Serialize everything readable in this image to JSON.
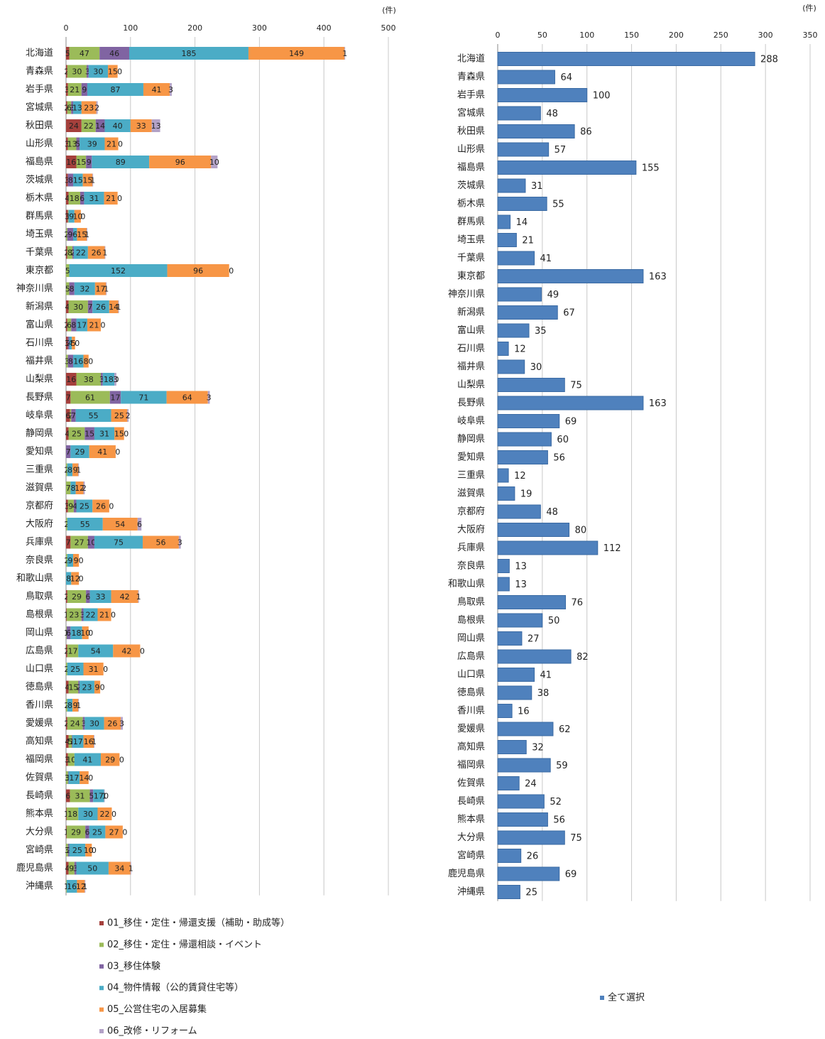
{
  "chart_data": [
    {
      "type": "stacked_barh",
      "unit_label": "(件)",
      "categories": [
        "北海道",
        "青森県",
        "岩手県",
        "宮城県",
        "秋田県",
        "山形県",
        "福島県",
        "茨城県",
        "栃木県",
        "群馬県",
        "埼玉県",
        "千葉県",
        "東京都",
        "神奈川県",
        "新潟県",
        "富山県",
        "石川県",
        "福井県",
        "山梨県",
        "長野県",
        "岐阜県",
        "静岡県",
        "愛知県",
        "三重県",
        "滋賀県",
        "京都府",
        "大阪府",
        "兵庫県",
        "奈良県",
        "和歌山県",
        "鳥取県",
        "島根県",
        "岡山県",
        "広島県",
        "山口県",
        "徳島県",
        "香川県",
        "愛媛県",
        "高知県",
        "福岡県",
        "佐賀県",
        "長崎県",
        "熊本県",
        "大分県",
        "宮崎県",
        "鹿児島県",
        "沖縄県"
      ],
      "xlim": [
        0,
        500
      ],
      "xticks": [
        0,
        100,
        200,
        300,
        400,
        500
      ],
      "grid": true,
      "legend": "bottom",
      "series": [
        {
          "name": "01_移住・定住・帰還支援（補助・助成等）",
          "color": "#a5403c",
          "values": [
            5,
            2,
            3,
            2,
            24,
            3,
            16,
            3,
            4,
            3,
            0,
            2,
            0,
            0,
            4,
            2,
            3,
            0,
            16,
            7,
            6,
            4,
            0,
            0,
            0,
            3,
            0,
            7,
            0,
            0,
            2,
            1,
            0,
            2,
            0,
            4,
            0,
            2,
            4,
            3,
            0,
            6,
            1,
            1,
            0,
            4,
            0
          ]
        },
        {
          "name": "02_移住・定住・帰還相談・イベント",
          "color": "#9bbb59",
          "values": [
            47,
            30,
            21,
            6,
            22,
            13,
            15,
            0,
            18,
            1,
            2,
            8,
            5,
            5,
            30,
            6,
            0,
            3,
            38,
            61,
            2,
            25,
            0,
            2,
            7,
            9,
            2,
            27,
            2,
            0,
            29,
            23,
            1,
            17,
            2,
            15,
            2,
            24,
            5,
            10,
            3,
            31,
            18,
            29,
            3,
            9,
            1
          ]
        },
        {
          "name": "03_移住体験",
          "color": "#8064a2",
          "values": [
            46,
            3,
            9,
            3,
            14,
            5,
            9,
            8,
            6,
            0,
            9,
            2,
            0,
            8,
            7,
            8,
            2,
            8,
            3,
            17,
            7,
            15,
            7,
            0,
            0,
            4,
            0,
            10,
            0,
            0,
            6,
            3,
            6,
            0,
            0,
            2,
            0,
            3,
            1,
            0,
            1,
            5,
            0,
            6,
            2,
            3,
            0
          ]
        },
        {
          "name": "04_物件情報（公的賃貸住宅等）",
          "color": "#4bacc6",
          "values": [
            185,
            30,
            87,
            13,
            40,
            39,
            89,
            15,
            31,
            9,
            6,
            22,
            152,
            32,
            26,
            17,
            4,
            16,
            18,
            71,
            55,
            31,
            29,
            8,
            8,
            25,
            55,
            75,
            9,
            8,
            33,
            22,
            18,
            54,
            25,
            23,
            8,
            30,
            17,
            41,
            17,
            17,
            30,
            25,
            25,
            50,
            16
          ]
        },
        {
          "name": "05_公営住宅の入居募集",
          "color": "#f79646",
          "values": [
            149,
            15,
            41,
            23,
            33,
            21,
            96,
            15,
            21,
            10,
            15,
            26,
            96,
            17,
            14,
            21,
            5,
            8,
            0,
            64,
            25,
            15,
            41,
            9,
            12,
            26,
            54,
            56,
            9,
            12,
            42,
            21,
            10,
            42,
            31,
            9,
            9,
            26,
            16,
            29,
            14,
            0,
            22,
            27,
            10,
            34,
            12
          ]
        },
        {
          "name": "06_改修・リフォーム",
          "color": "#b3a2c7",
          "values": [
            1,
            0,
            3,
            2,
            13,
            0,
            10,
            1,
            0,
            0,
            1,
            1,
            0,
            1,
            1,
            0,
            0,
            0,
            3,
            3,
            2,
            0,
            0,
            1,
            2,
            0,
            6,
            3,
            0,
            0,
            1,
            0,
            0,
            0,
            0,
            0,
            1,
            3,
            1,
            0,
            0,
            1,
            0,
            0,
            0,
            1,
            1
          ]
        }
      ]
    },
    {
      "type": "barh",
      "unit_label": "(件)",
      "categories": [
        "北海道",
        "青森県",
        "岩手県",
        "宮城県",
        "秋田県",
        "山形県",
        "福島県",
        "茨城県",
        "栃木県",
        "群馬県",
        "埼玉県",
        "千葉県",
        "東京都",
        "神奈川県",
        "新潟県",
        "富山県",
        "石川県",
        "福井県",
        "山梨県",
        "長野県",
        "岐阜県",
        "静岡県",
        "愛知県",
        "三重県",
        "滋賀県",
        "京都府",
        "大阪府",
        "兵庫県",
        "奈良県",
        "和歌山県",
        "鳥取県",
        "島根県",
        "岡山県",
        "広島県",
        "山口県",
        "徳島県",
        "香川県",
        "愛媛県",
        "高知県",
        "福岡県",
        "佐賀県",
        "長崎県",
        "熊本県",
        "大分県",
        "宮崎県",
        "鹿児島県",
        "沖縄県"
      ],
      "xlim": [
        0,
        350
      ],
      "xticks": [
        0,
        50,
        100,
        150,
        200,
        250,
        300,
        350
      ],
      "grid": true,
      "legend": "bottom",
      "series": [
        {
          "name": "全て選択",
          "color": "#4f81bd",
          "values": [
            288,
            64,
            100,
            48,
            86,
            57,
            155,
            31,
            55,
            14,
            21,
            41,
            163,
            49,
            67,
            35,
            12,
            30,
            75,
            163,
            69,
            60,
            56,
            12,
            19,
            48,
            80,
            112,
            13,
            13,
            76,
            50,
            27,
            82,
            41,
            38,
            16,
            62,
            32,
            59,
            24,
            52,
            56,
            75,
            26,
            69,
            25
          ]
        }
      ]
    }
  ]
}
